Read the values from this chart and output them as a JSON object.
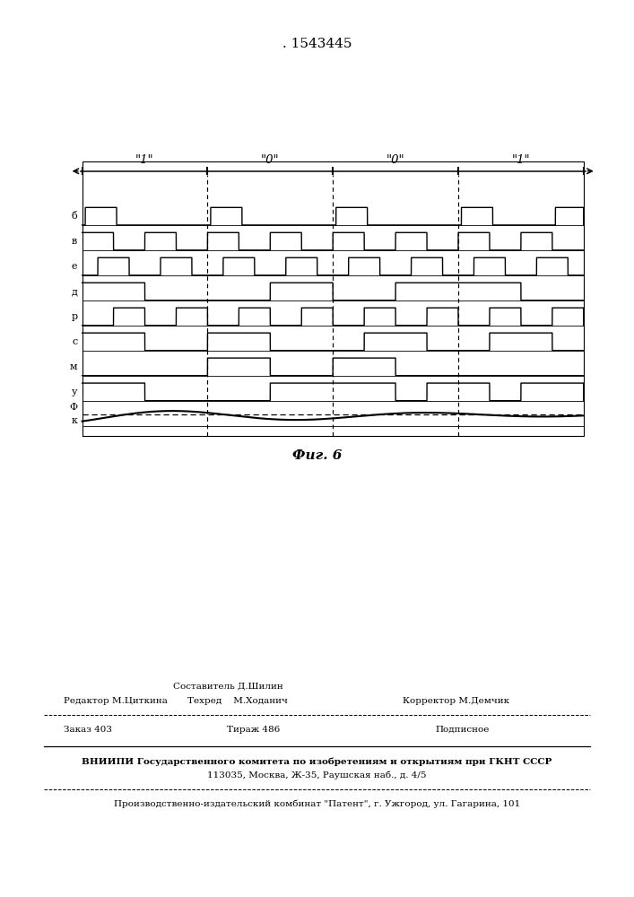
{
  "title": ". 1543445",
  "background_color": "#ffffff",
  "line_color": "#000000",
  "bit_labels": [
    "\"1\"",
    "\"0\"",
    "\"0\"",
    "\"1\""
  ],
  "signal_names": [
    "б",
    "в",
    "е",
    "д",
    "р",
    "с",
    "м",
    "у",
    "Φ",
    "к"
  ],
  "fig_caption": "Фиг.6",
  "admin_line1a": "Составитель Д.Шилин",
  "admin_line1b": "Редактор М.Циткина",
  "admin_line1c": "Техред    М.Ходанич",
  "admin_line1d": "Корректор М.Демчик",
  "admin_line2a": "Заказ 403",
  "admin_line2b": "Тираж 486",
  "admin_line2c": "Подписное",
  "admin_line3": "ВНИИПИ Государственного комитета по изобретениям и открытиям при ГКНТ СССР",
  "admin_line4": "113035, Москва, Ж-35, Раушская наб., д. 4/5",
  "admin_line5": "Производственно-издательский комбинат \"Патент\", г. Ужгород, ул. Гагарина, 101"
}
